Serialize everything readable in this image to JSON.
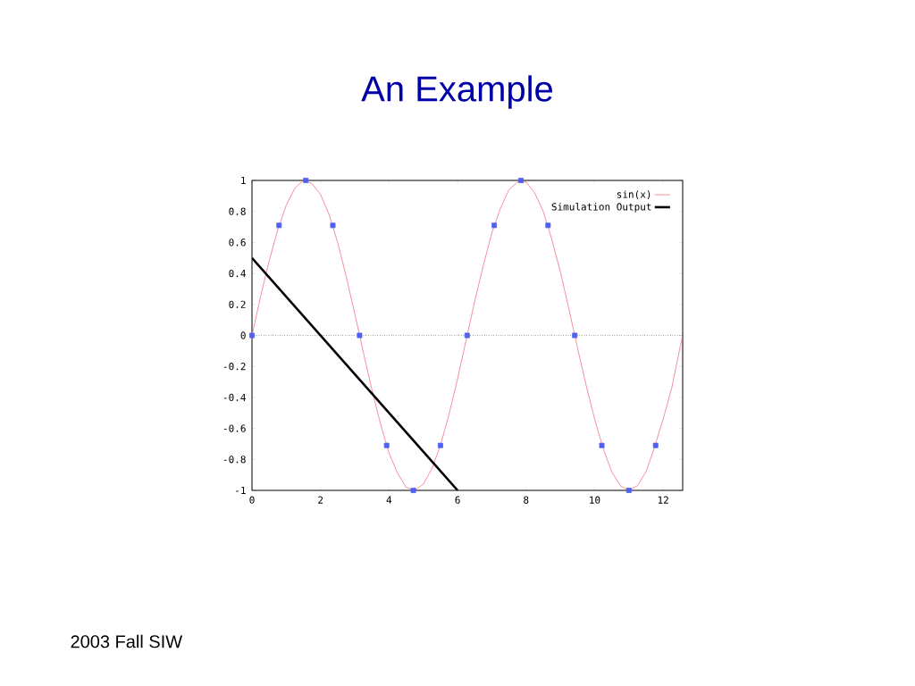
{
  "chart_data": {
    "type": "line",
    "title": "An Example",
    "annotations": [
      "2003 Fall SIW"
    ],
    "xlim": [
      0,
      12.57
    ],
    "xticks": [
      0,
      2,
      4,
      6,
      8,
      10,
      12
    ],
    "ylim": [
      -1,
      1
    ],
    "yticks": [
      -1,
      -0.8,
      -0.6,
      -0.4,
      -0.2,
      0,
      0.2,
      0.4,
      0.6,
      0.8,
      1
    ],
    "legend": "top right",
    "ref_lines": [
      {
        "axis": "y",
        "value": 0,
        "line_style": "dotted"
      }
    ],
    "series": [
      {
        "name": "sin(x)",
        "type": "line",
        "color": "#f06070",
        "x": [
          0,
          0.25,
          0.5,
          0.75,
          1,
          1.25,
          1.5,
          1.75,
          2,
          2.25,
          2.5,
          2.75,
          3,
          3.25,
          3.5,
          3.75,
          4,
          4.25,
          4.5,
          4.75,
          5,
          5.25,
          5.5,
          5.75,
          6,
          6.25,
          6.5,
          6.75,
          7,
          7.25,
          7.5,
          7.75,
          8,
          8.25,
          8.5,
          8.75,
          9,
          9.25,
          9.5,
          9.75,
          10,
          10.25,
          10.5,
          10.75,
          11,
          11.25,
          11.5,
          11.75,
          12,
          12.25,
          12.5,
          12.57
        ],
        "values": [
          0,
          0.25,
          0.48,
          0.68,
          0.84,
          0.95,
          1.0,
          0.98,
          0.91,
          0.78,
          0.6,
          0.38,
          0.14,
          -0.11,
          -0.35,
          -0.57,
          -0.76,
          -0.89,
          -0.98,
          -1.0,
          -0.96,
          -0.86,
          -0.71,
          -0.51,
          -0.28,
          -0.03,
          0.22,
          0.45,
          0.66,
          0.82,
          0.94,
          0.99,
          0.99,
          0.92,
          0.8,
          0.62,
          0.41,
          0.17,
          -0.08,
          -0.32,
          -0.54,
          -0.73,
          -0.88,
          -0.97,
          -1.0,
          -0.97,
          -0.88,
          -0.72,
          -0.54,
          -0.34,
          -0.07,
          0
        ]
      },
      {
        "name": "Simulation Output",
        "type": "line",
        "color": "#000000",
        "x": [
          0,
          6
        ],
        "values": [
          0.5,
          -1
        ]
      },
      {
        "type": "scatter",
        "marker": "square",
        "color": "#5060f0",
        "x": [
          0,
          0.79,
          1.57,
          2.36,
          3.14,
          3.93,
          4.71,
          5.5,
          6.28,
          7.07,
          7.85,
          8.64,
          9.42,
          10.21,
          11,
          11.78
        ],
        "values": [
          0,
          0.71,
          1,
          0.71,
          0,
          -0.71,
          -1,
          -0.71,
          0,
          0.71,
          1,
          0.71,
          0,
          -0.71,
          -1,
          -0.71
        ]
      }
    ]
  }
}
